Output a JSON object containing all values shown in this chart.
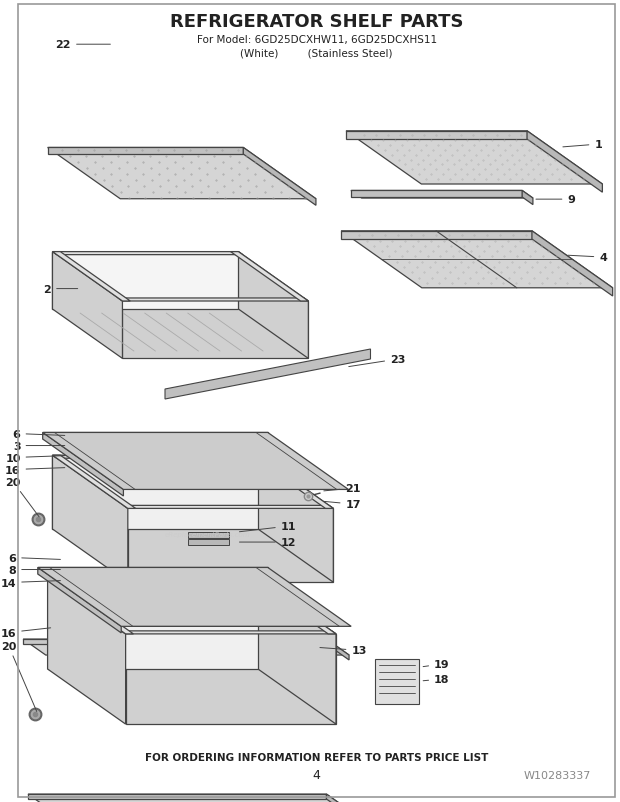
{
  "title": "REFRIGERATOR SHELF PARTS",
  "subtitle1": "For Model: 6GD25DCXHW11, 6GD25DCXHS11",
  "subtitle2": "(White)         (Stainless Steel)",
  "footer": "FOR ORDERING INFORMATION REFER TO PARTS PRICE LIST",
  "page_num": "4",
  "part_num": "W10283337",
  "bg_color": "#ffffff",
  "lc": "#444444",
  "tc": "#222222",
  "fc_light": "#f2f2f2",
  "fc_mid": "#d8d8d8",
  "fc_dark": "#b8b8b8",
  "fc_top": "#e8e8e8"
}
